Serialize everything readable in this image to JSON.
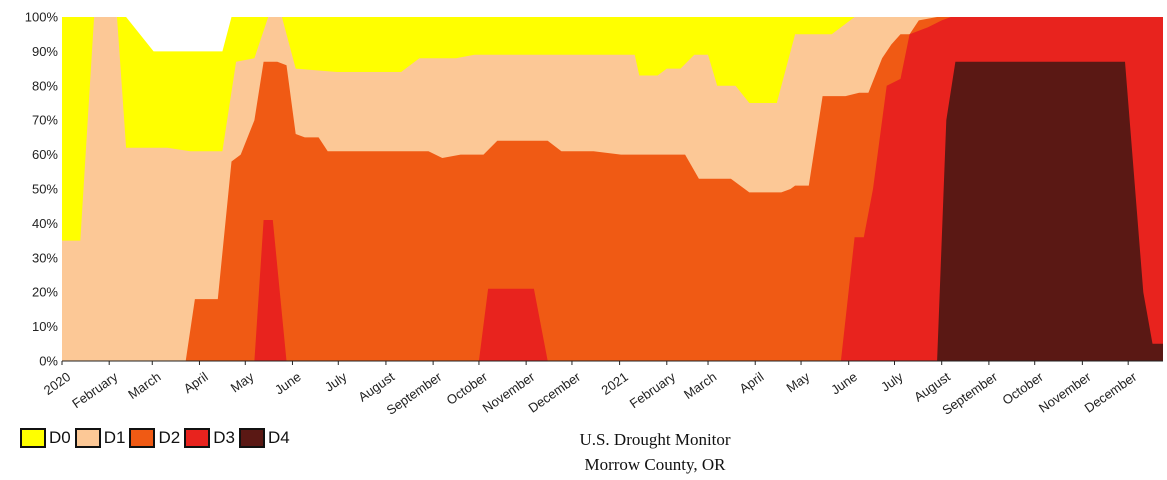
{
  "chart_data": {
    "type": "area",
    "stacking": "cumulative",
    "title": "U.S. Drought Monitor",
    "subtitle": "Morrow County, OR",
    "xlabel": "",
    "ylabel": "",
    "ylim": [
      0,
      100
    ],
    "y_ticks": [
      "0%",
      "10%",
      "20%",
      "30%",
      "40%",
      "50%",
      "60%",
      "70%",
      "80%",
      "90%",
      "100%"
    ],
    "x_ticks": [
      {
        "label": "2020",
        "x": 0
      },
      {
        "label": "February",
        "x": 1.03
      },
      {
        "label": "March",
        "x": 1.97
      },
      {
        "label": "April",
        "x": 3.0
      },
      {
        "label": "May",
        "x": 4.0
      },
      {
        "label": "June",
        "x": 5.03
      },
      {
        "label": "July",
        "x": 6.03
      },
      {
        "label": "August",
        "x": 7.07
      },
      {
        "label": "September",
        "x": 8.1
      },
      {
        "label": "October",
        "x": 9.1
      },
      {
        "label": "November",
        "x": 10.13
      },
      {
        "label": "December",
        "x": 11.13
      },
      {
        "label": "2021",
        "x": 12.17
      },
      {
        "label": "February",
        "x": 13.2
      },
      {
        "label": "March",
        "x": 14.1
      },
      {
        "label": "April",
        "x": 15.13
      },
      {
        "label": "May",
        "x": 16.13
      },
      {
        "label": "June",
        "x": 17.17
      },
      {
        "label": "July",
        "x": 18.17
      },
      {
        "label": "August",
        "x": 19.2
      },
      {
        "label": "September",
        "x": 20.23
      },
      {
        "label": "October",
        "x": 21.23
      },
      {
        "label": "November",
        "x": 22.27
      },
      {
        "label": "December",
        "x": 23.27
      }
    ],
    "x_range": [
      0,
      24.03
    ],
    "legend_position": "bottom-left",
    "series": [
      {
        "name": "D0",
        "color": "#ffff00",
        "points": [
          [
            0,
            100
          ],
          [
            0.8,
            100
          ],
          [
            1.4,
            100
          ],
          [
            2.0,
            90
          ],
          [
            3.5,
            90
          ],
          [
            3.7,
            100
          ],
          [
            24.03,
            100
          ]
        ]
      },
      {
        "name": "D1",
        "color": "#fcc896",
        "points": [
          [
            0,
            35
          ],
          [
            0.4,
            35
          ],
          [
            0.7,
            100
          ],
          [
            1.2,
            100
          ],
          [
            1.4,
            62
          ],
          [
            2.3,
            62
          ],
          [
            2.8,
            61
          ],
          [
            3.5,
            61
          ],
          [
            3.8,
            87
          ],
          [
            4.2,
            88
          ],
          [
            4.5,
            100
          ],
          [
            4.8,
            100
          ],
          [
            5.1,
            85
          ],
          [
            6.0,
            84
          ],
          [
            7.4,
            84
          ],
          [
            7.8,
            88
          ],
          [
            8.6,
            88
          ],
          [
            9.0,
            89
          ],
          [
            10.3,
            89
          ],
          [
            11.5,
            89
          ],
          [
            12.5,
            89
          ],
          [
            12.6,
            83
          ],
          [
            13.0,
            83
          ],
          [
            13.2,
            85
          ],
          [
            13.5,
            85
          ],
          [
            13.8,
            89
          ],
          [
            14.1,
            89
          ],
          [
            14.3,
            80
          ],
          [
            14.7,
            80
          ],
          [
            15.0,
            75
          ],
          [
            15.6,
            75
          ],
          [
            16.0,
            95
          ],
          [
            16.8,
            95
          ],
          [
            17.3,
            100
          ],
          [
            17.8,
            100
          ],
          [
            18.2,
            100
          ],
          [
            24.03,
            100
          ]
        ]
      },
      {
        "name": "D2",
        "color": "#f05a14",
        "points": [
          [
            0,
            0
          ],
          [
            2.7,
            0
          ],
          [
            2.9,
            18
          ],
          [
            3.4,
            18
          ],
          [
            3.7,
            58
          ],
          [
            3.9,
            60
          ],
          [
            4.2,
            70
          ],
          [
            4.4,
            87
          ],
          [
            4.7,
            87
          ],
          [
            4.9,
            86
          ],
          [
            5.1,
            66
          ],
          [
            5.3,
            65
          ],
          [
            5.6,
            65
          ],
          [
            5.8,
            61
          ],
          [
            6.5,
            61
          ],
          [
            7.0,
            61
          ],
          [
            8.0,
            61
          ],
          [
            8.3,
            59
          ],
          [
            8.7,
            60
          ],
          [
            9.2,
            60
          ],
          [
            9.5,
            64
          ],
          [
            10.2,
            64
          ],
          [
            10.6,
            64
          ],
          [
            10.9,
            61
          ],
          [
            11.6,
            61
          ],
          [
            12.2,
            60
          ],
          [
            12.5,
            60
          ],
          [
            12.9,
            60
          ],
          [
            13.2,
            60
          ],
          [
            13.6,
            60
          ],
          [
            13.9,
            53
          ],
          [
            14.6,
            53
          ],
          [
            15.0,
            49
          ],
          [
            15.7,
            49
          ],
          [
            15.9,
            50
          ],
          [
            16.0,
            51
          ],
          [
            16.3,
            51
          ],
          [
            16.6,
            77
          ],
          [
            17.1,
            77
          ],
          [
            17.4,
            78
          ],
          [
            17.6,
            78
          ],
          [
            17.9,
            88
          ],
          [
            18.1,
            92
          ],
          [
            18.3,
            95
          ],
          [
            18.5,
            95
          ],
          [
            18.7,
            99
          ],
          [
            19.1,
            100
          ],
          [
            24.03,
            100
          ]
        ]
      },
      {
        "name": "D3",
        "color": "#e8231e",
        "points": [
          [
            0,
            0
          ],
          [
            3.9,
            0
          ],
          [
            4.2,
            0
          ],
          [
            4.4,
            41
          ],
          [
            4.6,
            41
          ],
          [
            4.9,
            0
          ],
          [
            8.7,
            0
          ],
          [
            9.1,
            0
          ],
          [
            9.3,
            21
          ],
          [
            10.3,
            21
          ],
          [
            10.6,
            0
          ],
          [
            16.7,
            0
          ],
          [
            17.0,
            0
          ],
          [
            17.3,
            36
          ],
          [
            17.5,
            36
          ],
          [
            17.7,
            50
          ],
          [
            18.0,
            80
          ],
          [
            18.3,
            82
          ],
          [
            18.5,
            95
          ],
          [
            18.9,
            97
          ],
          [
            19.2,
            99
          ],
          [
            19.4,
            100
          ],
          [
            24.03,
            100
          ]
        ]
      },
      {
        "name": "D4",
        "color": "#5a1814",
        "points": [
          [
            0,
            0
          ],
          [
            18.9,
            0
          ],
          [
            19.1,
            0
          ],
          [
            19.3,
            70
          ],
          [
            19.5,
            87
          ],
          [
            21.0,
            87
          ],
          [
            22.5,
            87
          ],
          [
            23.2,
            87
          ],
          [
            23.6,
            20
          ],
          [
            23.8,
            5
          ],
          [
            24.03,
            5
          ]
        ]
      }
    ]
  }
}
